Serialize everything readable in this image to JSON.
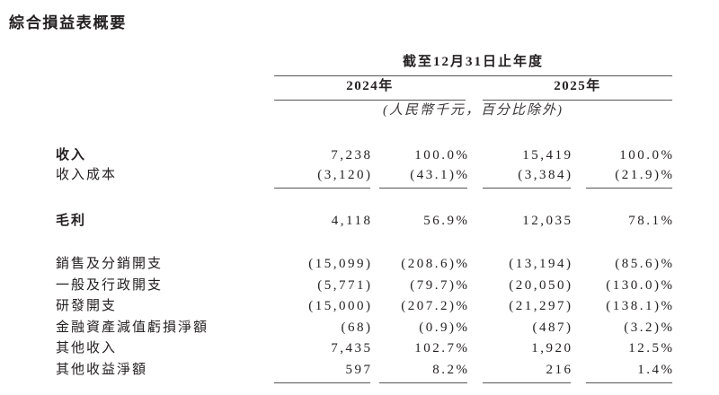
{
  "title": "綜合損益表概要",
  "table": {
    "period_header": "截至12月31日止年度",
    "year_2024": "2024年",
    "year_2025": "2025年",
    "unit_note": "(人民幣千元，百分比除外)",
    "rows": {
      "revenue": {
        "label": "收入",
        "amt2024": "7,238",
        "pct2024": "100.0%",
        "amt2025": "15,419",
        "pct2025": "100.0%"
      },
      "cost_of_revenue": {
        "label": "收入成本",
        "amt2024": "(3,120)",
        "pct2024": "(43.1)%",
        "amt2025": "(3,384)",
        "pct2025": "(21.9)%"
      },
      "gross_profit": {
        "label": "毛利",
        "amt2024": "4,118",
        "pct2024": "56.9%",
        "amt2025": "12,035",
        "pct2025": "78.1%"
      },
      "selling_distribution": {
        "label": "銷售及分銷開支",
        "amt2024": "(15,099)",
        "pct2024": "(208.6)%",
        "amt2025": "(13,194)",
        "pct2025": "(85.6)%"
      },
      "general_admin": {
        "label": "一般及行政開支",
        "amt2024": "(5,771)",
        "pct2024": "(79.7)%",
        "amt2025": "(20,050)",
        "pct2025": "(130.0)%"
      },
      "rnd_expenses": {
        "label": "研發開支",
        "amt2024": "(15,000)",
        "pct2024": "(207.2)%",
        "amt2025": "(21,297)",
        "pct2025": "(138.1)%"
      },
      "impairment_losses": {
        "label": "金融資產減值虧損淨額",
        "amt2024": "(68)",
        "pct2024": "(0.9)%",
        "amt2025": "(487)",
        "pct2025": "(3.2)%"
      },
      "other_income": {
        "label": "其他收入",
        "amt2024": "7,435",
        "pct2024": "102.7%",
        "amt2025": "1,920",
        "pct2025": "12.5%"
      },
      "other_gains_net": {
        "label": "其他收益淨額",
        "amt2024": "597",
        "pct2024": "8.2%",
        "amt2025": "216",
        "pct2025": "1.4%"
      }
    }
  }
}
